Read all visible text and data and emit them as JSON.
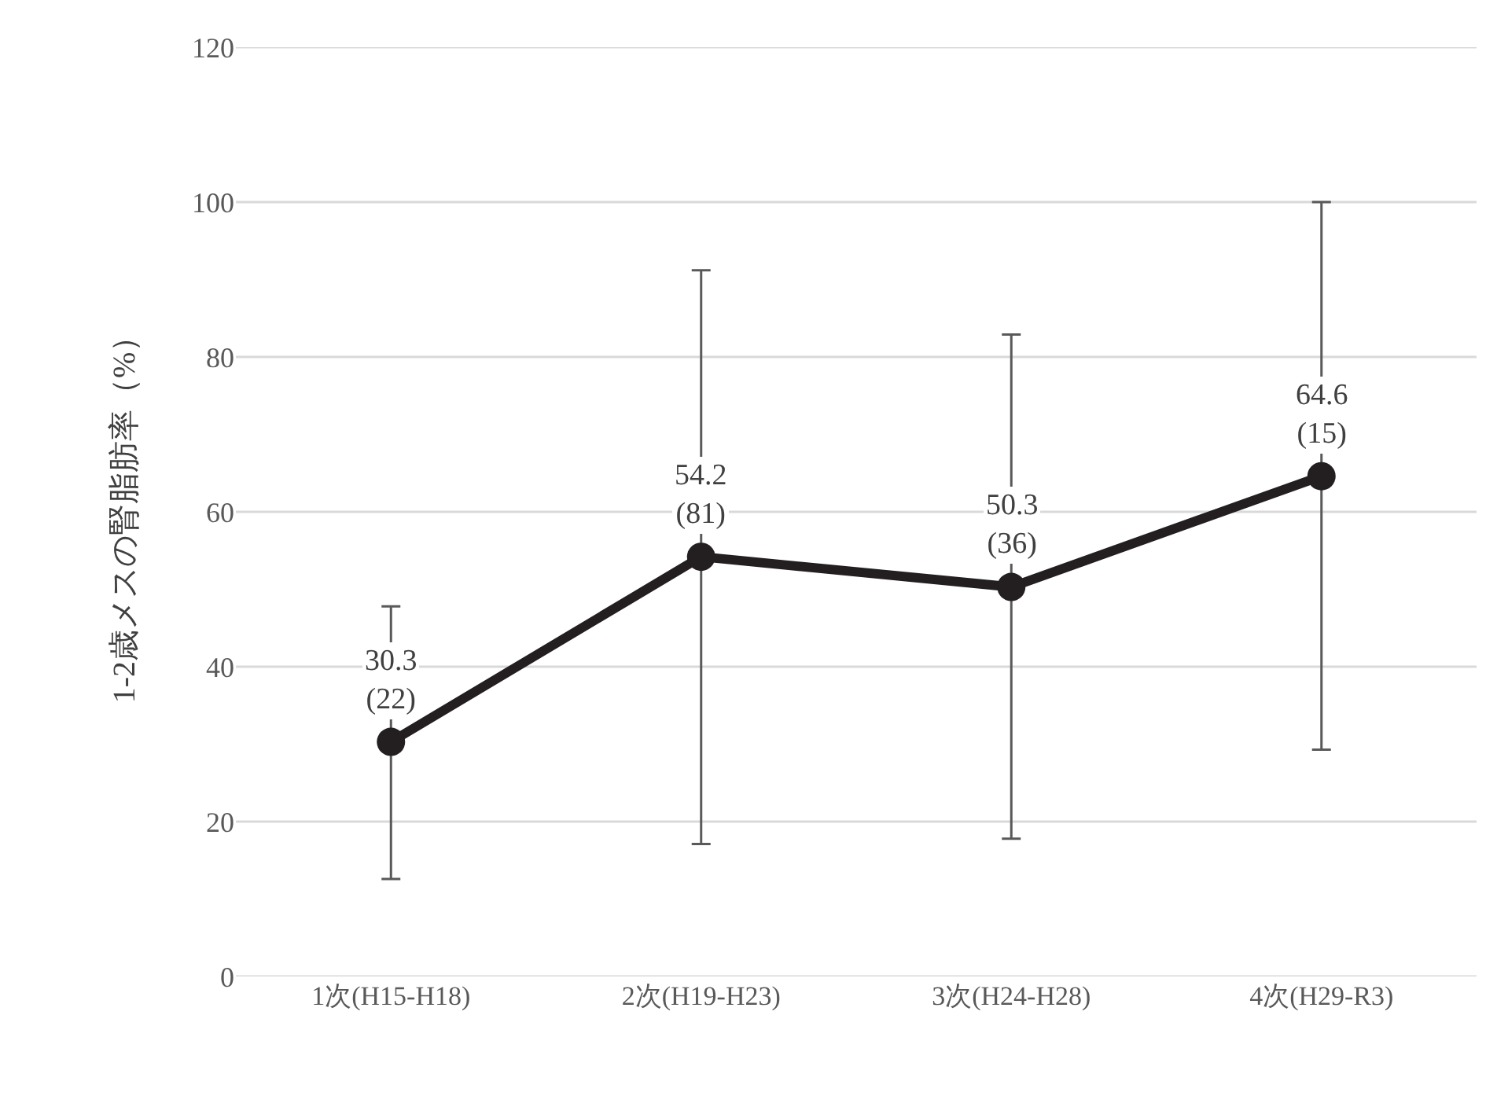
{
  "chart_data": {
    "type": "line",
    "ylabel": "1-2歳メスの腎脂肪率（%）",
    "categories": [
      "1次(H15-H18)",
      "2次(H19-H23)",
      "3次(H24-H28)",
      "4次(H29-R3)"
    ],
    "series": [
      {
        "color": "#231f20",
        "values": [
          30.3,
          54.2,
          50.3,
          64.6
        ],
        "errors": [
          [
            12.6,
            47.8
          ],
          [
            17.1,
            91.2
          ],
          [
            17.8,
            82.9
          ],
          [
            29.3,
            100
          ]
        ],
        "value_labels": [
          "30.3\n(22)",
          "54.2\n(81)",
          "50.3\n(36)",
          "64.6\n(15)"
        ]
      }
    ],
    "ylim": [
      0,
      120
    ],
    "yticks": [
      0,
      20,
      40,
      60,
      80,
      100,
      120
    ],
    "grid": "y",
    "marker": "circle",
    "line_style": "solid"
  }
}
